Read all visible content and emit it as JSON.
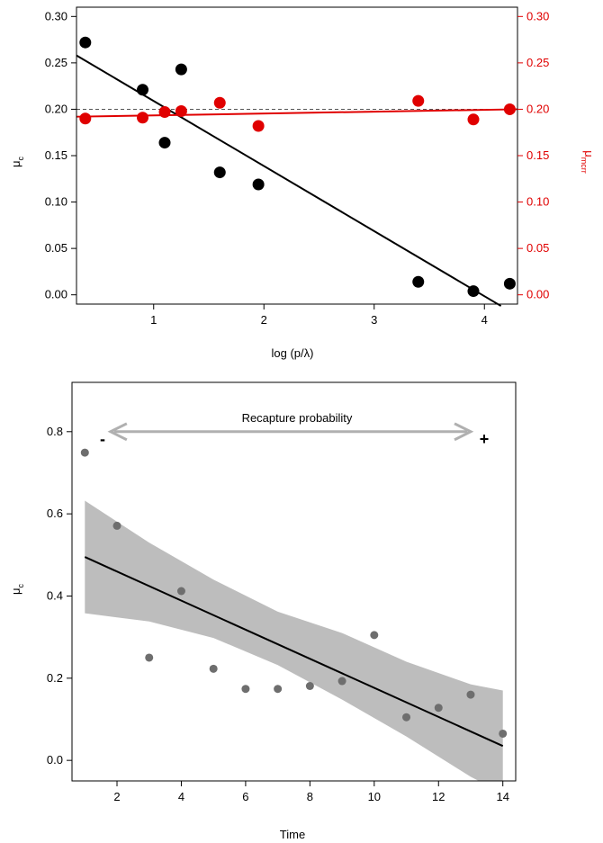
{
  "chart_data": [
    {
      "type": "scatter",
      "xlabel": "log (p/λ)",
      "ylabel_base": "μ",
      "ylabel_sub": "c",
      "ylabel_right_base": "μ",
      "ylabel_right_sub": "mcrr",
      "xlim": [
        0.3,
        4.3
      ],
      "ylim": [
        -0.01,
        0.31
      ],
      "xticks": [
        "1",
        "2",
        "3",
        "4"
      ],
      "xtick_values": [
        1,
        2,
        3,
        4
      ],
      "yticks": [
        "0.00",
        "0.05",
        "0.10",
        "0.15",
        "0.20",
        "0.25",
        "0.30"
      ],
      "ytick_values": [
        0.0,
        0.05,
        0.1,
        0.15,
        0.2,
        0.25,
        0.3
      ],
      "right_yticks": [
        "0.00",
        "0.05",
        "0.10",
        "0.15",
        "0.20",
        "0.25",
        "0.30"
      ],
      "reference_line_y": 0.2,
      "series": [
        {
          "color": "#000000",
          "x": [
            0.38,
            0.9,
            1.1,
            1.25,
            1.6,
            1.95,
            3.4,
            3.9,
            4.23
          ],
          "y": [
            0.272,
            0.221,
            0.164,
            0.243,
            0.132,
            0.119,
            0.014,
            0.004,
            0.012
          ],
          "fit": {
            "x": [
              0.3,
              4.15
            ],
            "y": [
              0.258,
              -0.012
            ]
          }
        },
        {
          "color": "#e00000",
          "x": [
            0.38,
            0.9,
            1.1,
            1.25,
            1.6,
            1.95,
            3.4,
            3.9,
            4.23
          ],
          "y": [
            0.19,
            0.191,
            0.197,
            0.198,
            0.207,
            0.182,
            0.209,
            0.189,
            0.2
          ],
          "fit": {
            "x": [
              0.3,
              4.3
            ],
            "y": [
              0.192,
              0.2
            ]
          }
        }
      ]
    },
    {
      "type": "scatter",
      "xlabel": "Time",
      "ylabel_base": "μ",
      "ylabel_sub": "c",
      "xlim": [
        0.6,
        14.4
      ],
      "ylim": [
        -0.05,
        0.92
      ],
      "xticks": [
        "2",
        "4",
        "6",
        "8",
        "10",
        "12",
        "14"
      ],
      "xtick_values": [
        2,
        4,
        6,
        8,
        10,
        12,
        14
      ],
      "yticks": [
        "0.0",
        "0.2",
        "0.4",
        "0.6",
        "0.8"
      ],
      "ytick_values": [
        0.0,
        0.2,
        0.4,
        0.6,
        0.8
      ],
      "annotation": "Recapture probability",
      "annotation_minus": "-",
      "annotation_plus": "+",
      "arrow": {
        "x": [
          1.8,
          13.0
        ],
        "y": 0.8
      },
      "series": [
        {
          "color": "#6e6e6e",
          "x": [
            1,
            2,
            3,
            4,
            5,
            6,
            7,
            8,
            9,
            10,
            11,
            12,
            13,
            14
          ],
          "y": [
            0.749,
            0.571,
            0.25,
            0.412,
            0.223,
            0.174,
            0.174,
            0.181,
            0.193,
            0.305,
            0.105,
            0.128,
            0.16,
            0.065
          ],
          "fit": {
            "x": [
              1,
              14
            ],
            "y": [
              0.495,
              0.035
            ]
          },
          "band": {
            "x": [
              1,
              3,
              5,
              7,
              9,
              11,
              13,
              14
            ],
            "lower": [
              0.358,
              0.338,
              0.298,
              0.232,
              0.148,
              0.058,
              -0.04,
              -0.08
            ],
            "upper": [
              0.632,
              0.53,
              0.44,
              0.362,
              0.31,
              0.24,
              0.185,
              0.17
            ]
          }
        }
      ]
    }
  ]
}
